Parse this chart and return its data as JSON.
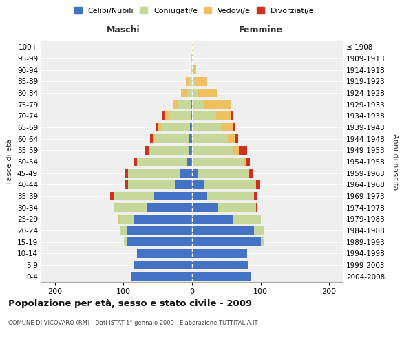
{
  "age_groups": [
    "0-4",
    "5-9",
    "10-14",
    "15-19",
    "20-24",
    "25-29",
    "30-34",
    "35-39",
    "40-44",
    "45-49",
    "50-54",
    "55-59",
    "60-64",
    "65-69",
    "70-74",
    "75-79",
    "80-84",
    "85-89",
    "90-94",
    "95-99",
    "100+"
  ],
  "birth_years": [
    "2004-2008",
    "1999-2003",
    "1994-1998",
    "1989-1993",
    "1984-1988",
    "1979-1983",
    "1974-1978",
    "1969-1973",
    "1964-1968",
    "1959-1963",
    "1954-1958",
    "1949-1953",
    "1944-1948",
    "1939-1943",
    "1934-1938",
    "1929-1933",
    "1924-1928",
    "1919-1923",
    "1914-1918",
    "1909-1913",
    "≤ 1908"
  ],
  "maschi_celibi": [
    88,
    85,
    80,
    95,
    95,
    85,
    65,
    55,
    25,
    18,
    8,
    5,
    4,
    3,
    2,
    2,
    0,
    0,
    0,
    0,
    0
  ],
  "maschi_coniugati": [
    0,
    0,
    0,
    4,
    10,
    20,
    50,
    60,
    68,
    75,
    72,
    58,
    50,
    42,
    32,
    18,
    8,
    4,
    2,
    1,
    0
  ],
  "maschi_vedovi": [
    0,
    0,
    0,
    0,
    0,
    2,
    0,
    0,
    0,
    0,
    0,
    0,
    2,
    4,
    6,
    8,
    8,
    5,
    0,
    0,
    0
  ],
  "maschi_divorziati": [
    0,
    0,
    0,
    0,
    0,
    0,
    0,
    5,
    5,
    5,
    5,
    5,
    5,
    4,
    4,
    0,
    0,
    0,
    0,
    0,
    0
  ],
  "femmine_celibi": [
    85,
    82,
    80,
    100,
    90,
    60,
    38,
    22,
    18,
    8,
    0,
    0,
    0,
    0,
    0,
    0,
    0,
    0,
    0,
    0,
    0
  ],
  "femmine_coniugati": [
    0,
    0,
    0,
    5,
    15,
    40,
    55,
    68,
    75,
    75,
    75,
    60,
    52,
    42,
    35,
    18,
    8,
    4,
    2,
    1,
    0
  ],
  "femmine_vedovi": [
    0,
    0,
    0,
    0,
    0,
    0,
    0,
    0,
    0,
    0,
    4,
    8,
    10,
    18,
    22,
    38,
    28,
    18,
    4,
    1,
    1
  ],
  "femmine_divorziati": [
    0,
    0,
    0,
    0,
    0,
    0,
    2,
    5,
    5,
    5,
    5,
    12,
    5,
    2,
    2,
    0,
    0,
    0,
    0,
    0,
    0
  ],
  "colors": {
    "celibi": "#4472C4",
    "coniugati": "#C5D89A",
    "vedovi": "#F0C060",
    "divorziati": "#D03020"
  },
  "xlim": [
    -220,
    220
  ],
  "xticks": [
    -200,
    -100,
    0,
    100,
    200
  ],
  "xticklabels": [
    "200",
    "100",
    "0",
    "100",
    "200"
  ],
  "title": "Popolazione per età, sesso e stato civile - 2009",
  "subtitle": "COMUNE DI VICOVARO (RM) - Dati ISTAT 1° gennaio 2009 - Elaborazione TUTTITALIA.IT",
  "ylabel_left": "Fasce di età",
  "ylabel_right": "Anni di nascita",
  "label_maschi": "Maschi",
  "label_femmine": "Femmine",
  "legend_labels": [
    "Celibi/Nubili",
    "Coniugati/e",
    "Vedovi/e",
    "Divorziati/e"
  ],
  "background_color": "#ffffff",
  "plot_bg_color": "#efefef",
  "bar_height": 0.75
}
